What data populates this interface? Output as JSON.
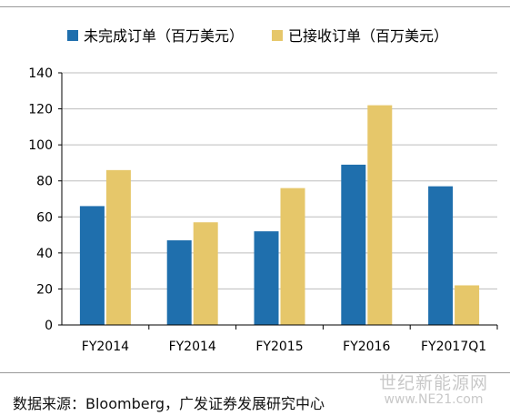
{
  "chart_data": {
    "type": "bar",
    "categories": [
      "FY2014",
      "FY2014",
      "FY2015",
      "FY2016",
      "FY2017Q1"
    ],
    "series": [
      {
        "name": "未完成订单（百万美元）",
        "values": [
          66,
          47,
          52,
          89,
          77
        ],
        "color": "#1f6fad"
      },
      {
        "name": "已接收订单（百万美元）",
        "values": [
          86,
          57,
          76,
          122,
          22
        ],
        "color": "#e6c76a"
      }
    ],
    "ylim": [
      0,
      140
    ],
    "yticks": [
      0,
      20,
      40,
      60,
      80,
      100,
      120,
      140
    ],
    "grid": true,
    "legend": "top"
  },
  "source_text": "数据来源：Bloomberg，广发证券发展研究中心",
  "watermark": {
    "line1": "世纪新能源网",
    "line2": "www.NE21.com"
  }
}
